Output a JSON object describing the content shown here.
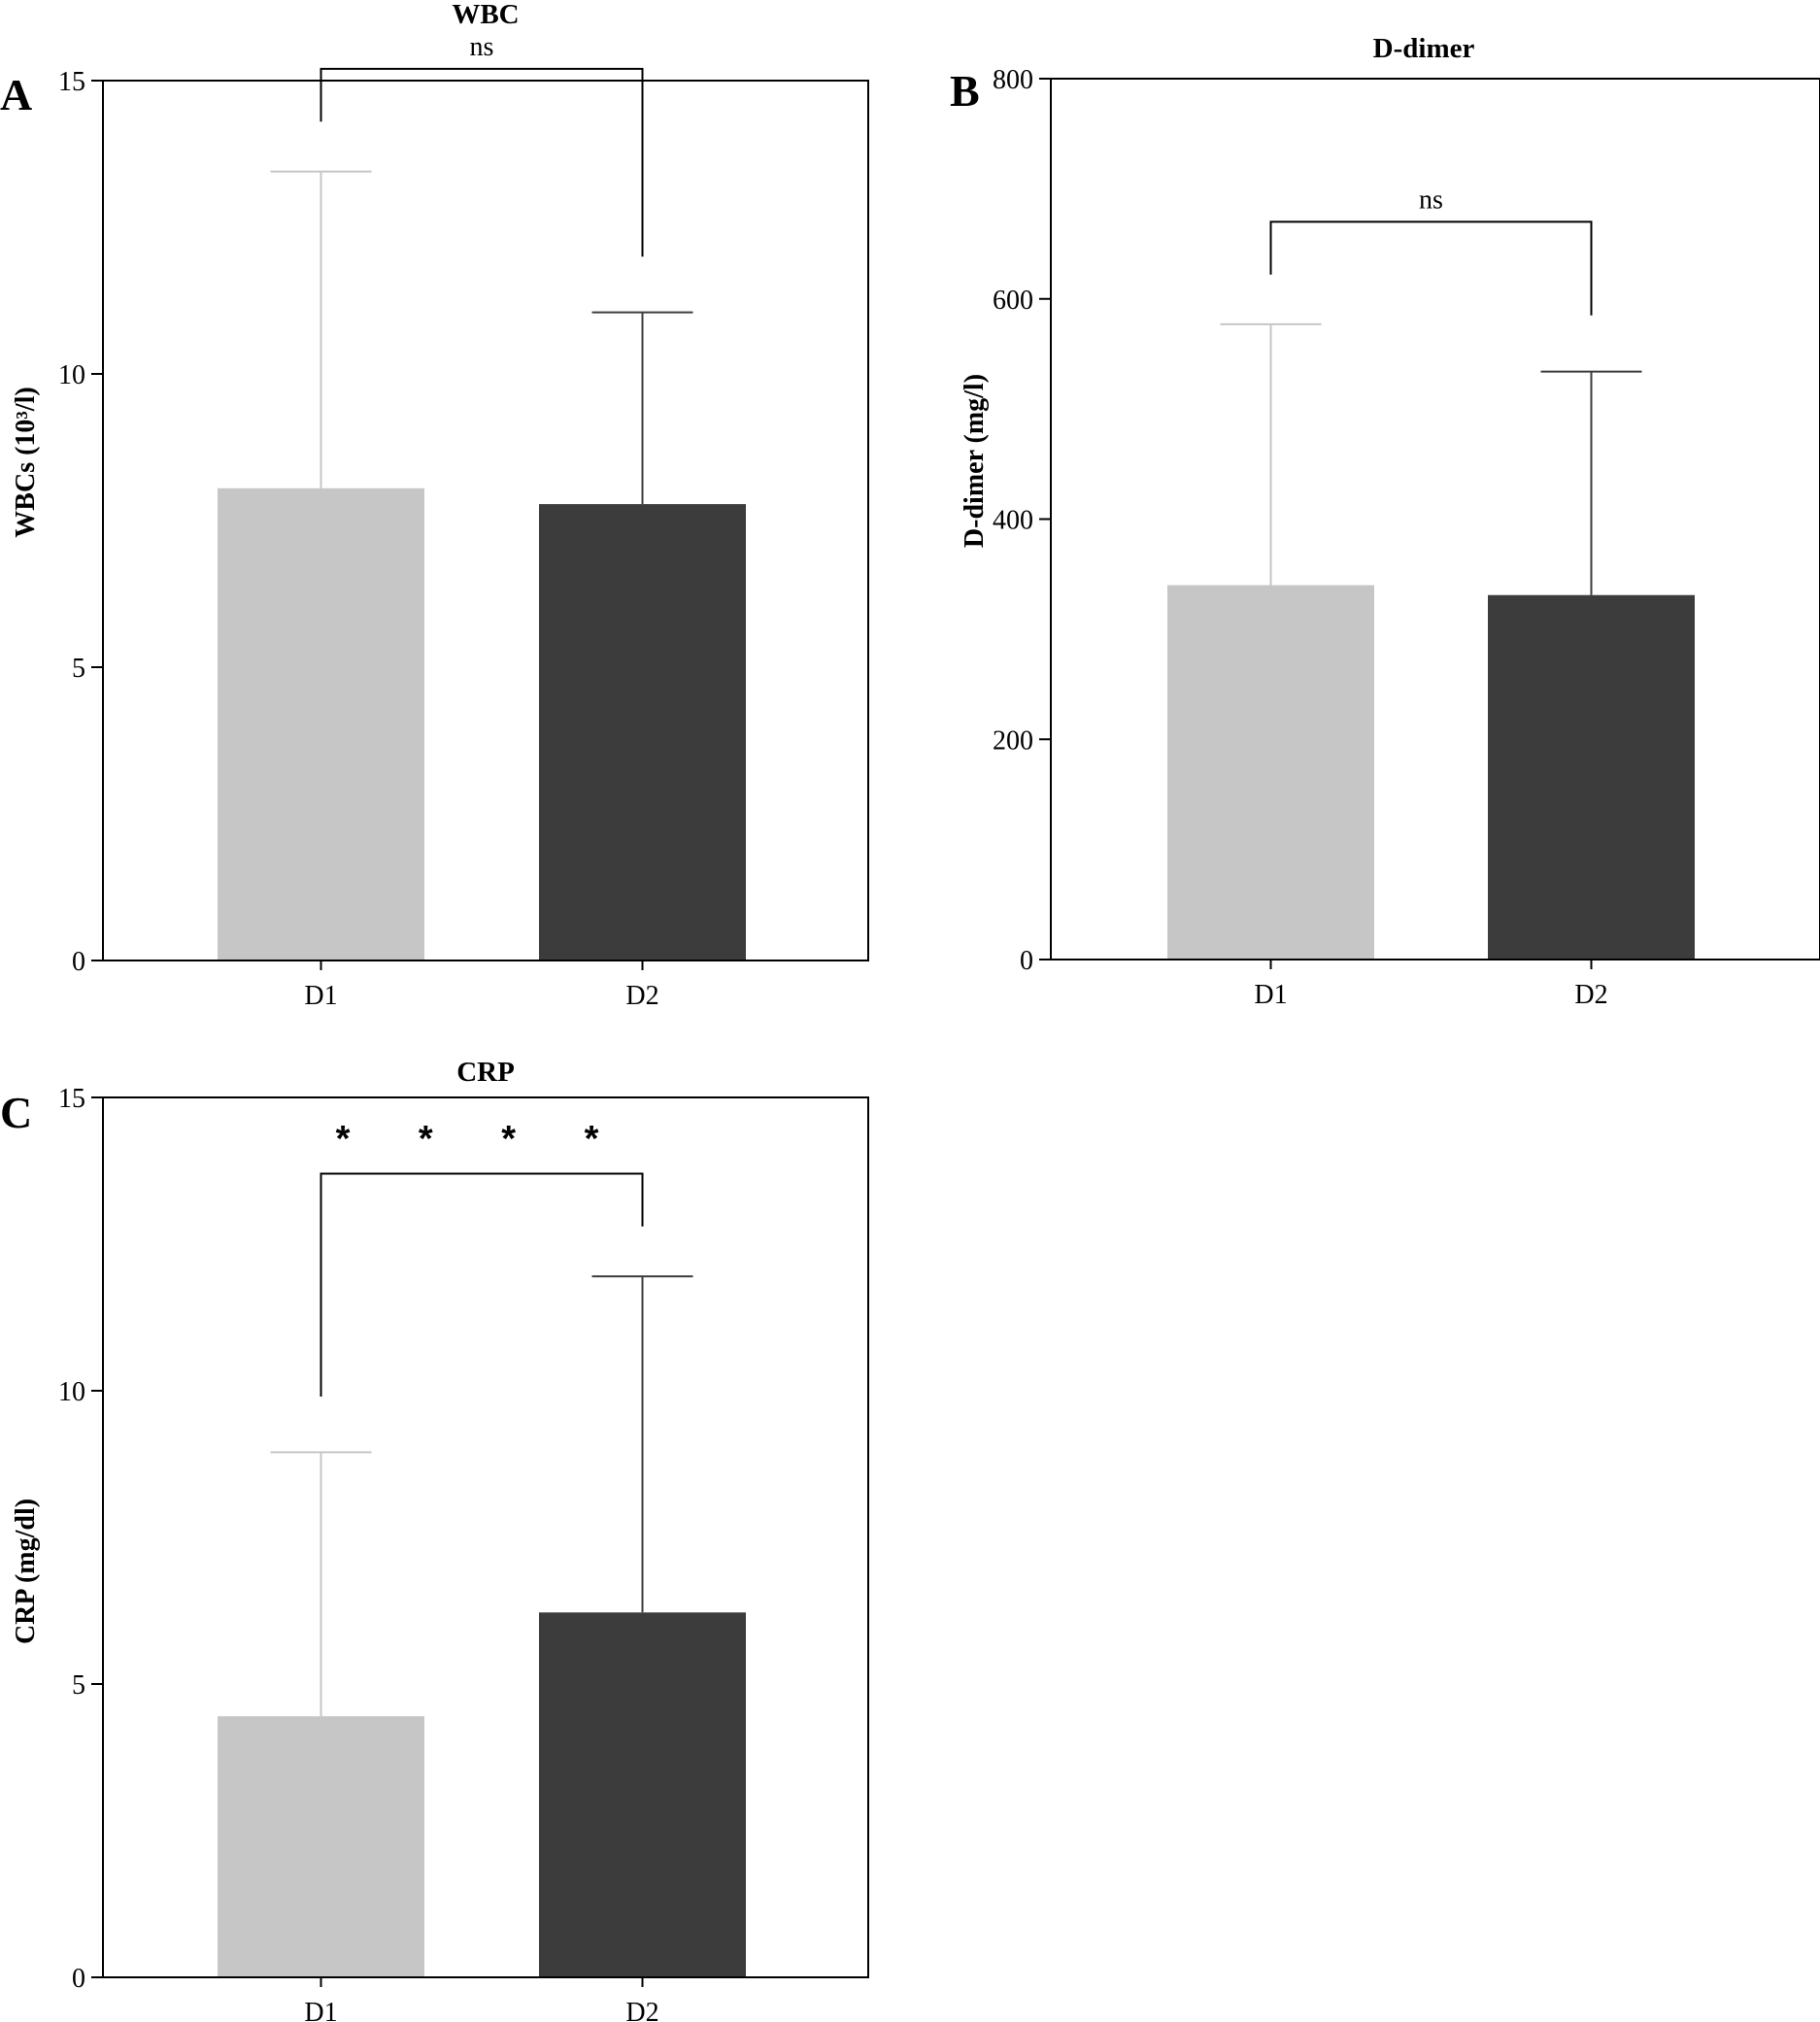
{
  "figure": {
    "colors": {
      "d1": "#c6c6c6",
      "d2": "#3c3c3c",
      "axis": "#000000",
      "d1_err": "#c6c6c6",
      "d2_err": "#3c3c3c"
    }
  },
  "chart_data": [
    {
      "panel": "A",
      "type": "bar",
      "title": "WBC",
      "ylabel": "WBCs (10³/l)",
      "xlabel": "",
      "categories": [
        "D1",
        "D2"
      ],
      "values": [
        8.05,
        7.78
      ],
      "errors_upper": [
        13.45,
        11.05
      ],
      "ylim": [
        0,
        15
      ],
      "yticks": [
        0,
        5,
        10,
        15
      ],
      "ytick_labels": [
        "0",
        "5",
        "10",
        "15"
      ],
      "significance": {
        "label": "ns",
        "bracket_y": 15.2,
        "left_drop_y": 14.3,
        "right_drop_y": 12.0
      }
    },
    {
      "panel": "B",
      "type": "bar",
      "title": "D-dimer",
      "ylabel": "D-dimer (mg/l)",
      "xlabel": "",
      "categories": [
        "D1",
        "D2"
      ],
      "values": [
        340,
        331
      ],
      "errors_upper": [
        577,
        534
      ],
      "ylim": [
        0,
        800
      ],
      "yticks": [
        0,
        200,
        400,
        600,
        800
      ],
      "ytick_labels": [
        "0",
        "200",
        "400",
        "600",
        "800"
      ],
      "significance": {
        "label": "ns",
        "bracket_y": 670,
        "left_drop_y": 622,
        "right_drop_y": 585
      }
    },
    {
      "panel": "C",
      "type": "bar",
      "title": "CRP",
      "ylabel": "CRP (mg/dl)",
      "xlabel": "",
      "categories": [
        "D1",
        "D2"
      ],
      "values": [
        4.45,
        6.22
      ],
      "errors_upper": [
        8.95,
        11.95
      ],
      "ylim": [
        0,
        15
      ],
      "yticks": [
        0,
        5,
        10,
        15
      ],
      "ytick_labels": [
        "0",
        "5",
        "10",
        "15"
      ],
      "significance": {
        "label": "* * * *",
        "bracket_y": 13.7,
        "left_drop_y": 9.9,
        "right_drop_y": 12.8
      }
    }
  ]
}
